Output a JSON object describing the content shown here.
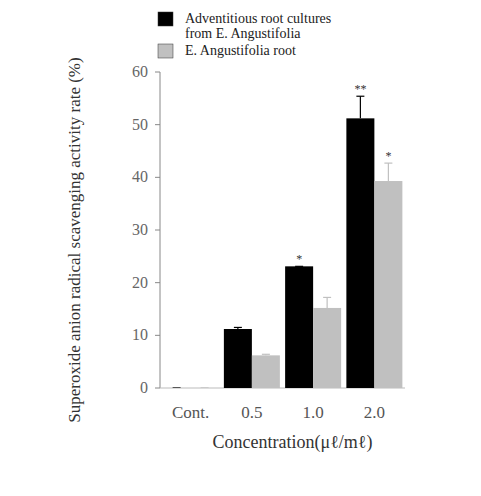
{
  "chart_data": {
    "type": "bar",
    "x_label": "Concentration(μℓ/mℓ)",
    "y_label": "Superoxide anion radical scavenging activity rate (%)",
    "categories": [
      "Cont.",
      "0.5",
      "1.0",
      "2.0"
    ],
    "series": [
      {
        "name": "Adventitious root cultures\nfrom E. Angustifolia",
        "color": "#000000",
        "values": [
          0,
          11.2,
          23.1,
          51.2
        ],
        "errors": [
          0,
          0.3,
          0,
          4.2
        ],
        "significance": [
          null,
          null,
          "*",
          "**"
        ]
      },
      {
        "name": "E. Angustifolia root",
        "color": "#c0c0c0",
        "values": [
          0,
          6.2,
          15.2,
          39.3
        ],
        "errors": [
          0,
          0.2,
          2.0,
          3.4
        ],
        "significance": [
          null,
          null,
          null,
          "*"
        ]
      }
    ],
    "ylim": [
      0,
      60
    ],
    "yticks": [
      0,
      10,
      20,
      30,
      40,
      50,
      60
    ],
    "grid": false,
    "legend": "top"
  }
}
